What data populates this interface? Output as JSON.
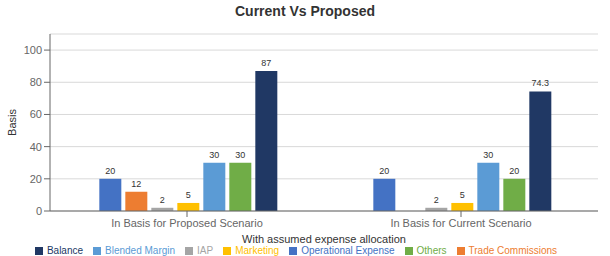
{
  "chart_data": {
    "type": "bar",
    "title": "Current Vs Proposed",
    "xlabel": "With assumed expense allocation",
    "ylabel": "Basis",
    "categories": [
      "In Basis for Proposed Scenario",
      "In Basis for Current Scenario"
    ],
    "series": [
      {
        "name": "Operational Expense",
        "color": "#4472C4",
        "values": [
          20,
          20
        ]
      },
      {
        "name": "Trade Commissions",
        "color": "#ED7D31",
        "values": [
          12,
          0
        ]
      },
      {
        "name": "IAP",
        "color": "#A5A5A5",
        "values": [
          2,
          2
        ]
      },
      {
        "name": "Marketing",
        "color": "#FFC000",
        "values": [
          5,
          5
        ]
      },
      {
        "name": "Blended Margin",
        "color": "#5B9BD5",
        "values": [
          30,
          30
        ]
      },
      {
        "name": "Others",
        "color": "#70AD47",
        "values": [
          30,
          20
        ]
      },
      {
        "name": "Balance",
        "color": "#203864",
        "values": [
          87,
          74.3
        ]
      }
    ],
    "ylim": [
      0,
      110
    ],
    "yticks": [
      0,
      20,
      40,
      60,
      80,
      100
    ],
    "grid": true,
    "legend": "bottom",
    "data_labels": true
  }
}
